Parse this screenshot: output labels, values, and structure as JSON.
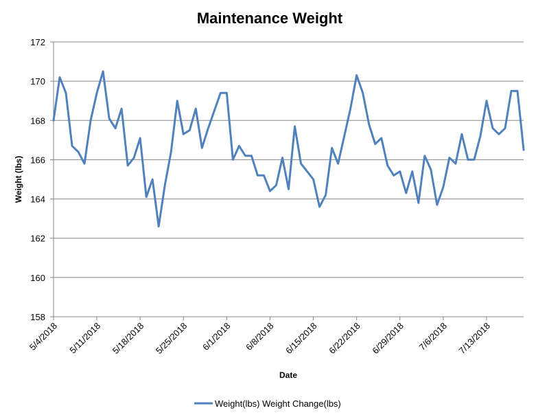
{
  "chart_data": {
    "type": "line",
    "title": "Maintenance Weight",
    "xlabel": "Date",
    "ylabel": "Weight (lbs)",
    "ylim": [
      158,
      172
    ],
    "yticks": [
      158,
      160,
      162,
      164,
      166,
      168,
      170,
      172
    ],
    "xticks": [
      "5/4/2018",
      "5/11/2018",
      "5/18/2018",
      "5/25/2018",
      "6/1/2018",
      "6/8/2018",
      "6/15/2018",
      "6/22/2018",
      "6/29/2018",
      "7/6/2018",
      "7/13/2018"
    ],
    "grid": "horizontal",
    "legend_position": "bottom",
    "legend": [
      "Weight(lbs)",
      "Weight Change(lbs)"
    ],
    "series": [
      {
        "name": "Weight(lbs)",
        "color": "#4F81BD",
        "x_start": "5/4/2018",
        "x_step_days": 1,
        "values": [
          168.0,
          170.2,
          169.4,
          166.7,
          166.4,
          165.8,
          168.0,
          169.4,
          170.5,
          168.1,
          167.6,
          168.6,
          165.7,
          166.1,
          167.1,
          164.1,
          165.0,
          162.6,
          164.7,
          166.4,
          169.0,
          167.3,
          167.5,
          168.6,
          166.6,
          167.6,
          168.5,
          169.4,
          169.4,
          166.0,
          166.7,
          166.2,
          166.2,
          165.2,
          165.2,
          164.4,
          164.7,
          166.1,
          164.5,
          167.7,
          165.8,
          165.4,
          165.0,
          163.6,
          164.2,
          166.6,
          165.8,
          167.2,
          168.6,
          170.3,
          169.4,
          167.8,
          166.8,
          167.1,
          165.7,
          165.2,
          165.4,
          164.3,
          165.4,
          163.8,
          166.2,
          165.5,
          163.7,
          164.6,
          166.1,
          165.8,
          167.3,
          166.0,
          166.0,
          167.2,
          169.0,
          167.6,
          167.3,
          167.6,
          169.5,
          169.5,
          166.5
        ]
      }
    ]
  }
}
